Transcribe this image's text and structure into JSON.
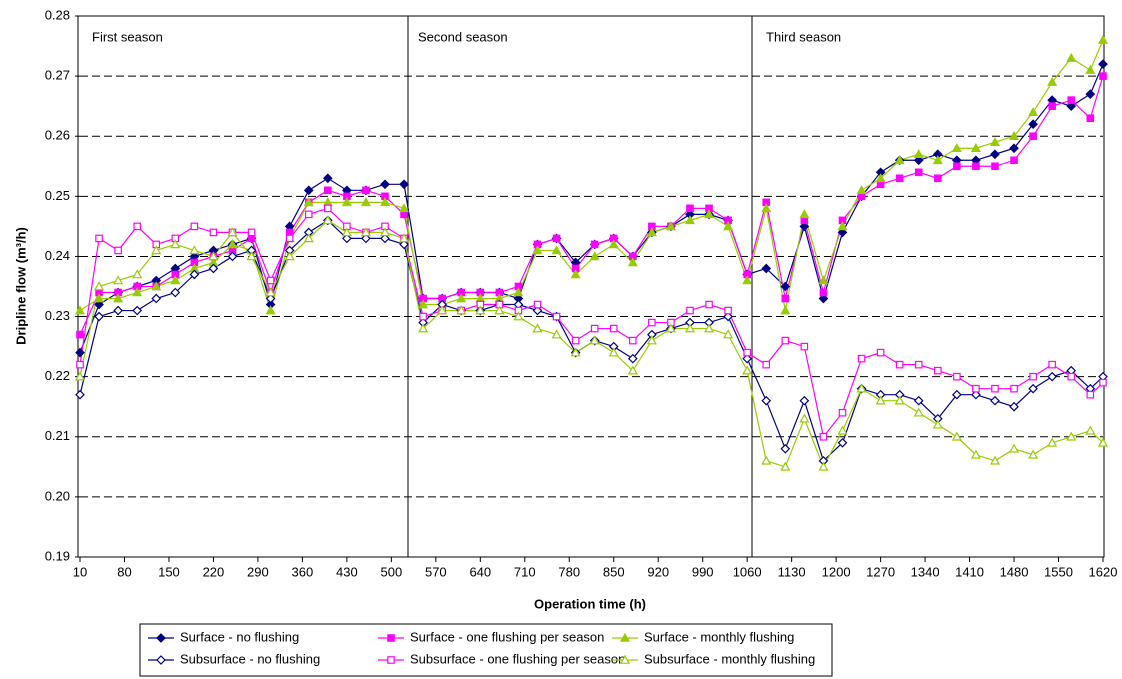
{
  "chart_data": {
    "type": "line",
    "xlabel": "Operation time (h)",
    "ylabel": "Dripline flow (m³/h)",
    "annotations": [
      "First season",
      "Second season",
      "Third season"
    ],
    "grid": true,
    "legend": "bottom",
    "xlim": [
      10,
      1620
    ],
    "xticks": [
      10,
      80,
      150,
      220,
      290,
      360,
      430,
      500,
      570,
      640,
      710,
      780,
      850,
      920,
      990,
      1060,
      1130,
      1200,
      1270,
      1340,
      1410,
      1480,
      1550,
      1620
    ],
    "ylim": [
      0.19,
      0.28
    ],
    "yticks": [
      0.19,
      {
        "value": 0.2,
        "label": "0.20"
      },
      0.21,
      0.22,
      0.23,
      0.24,
      0.25,
      0.26,
      0.27,
      0.28
    ],
    "x": [
      10,
      40,
      70,
      100,
      130,
      160,
      190,
      220,
      250,
      280,
      310,
      340,
      370,
      400,
      430,
      460,
      490,
      520,
      550,
      580,
      610,
      640,
      670,
      700,
      730,
      760,
      790,
      820,
      850,
      880,
      910,
      940,
      970,
      1000,
      1030,
      1060,
      1090,
      1120,
      1150,
      1180,
      1210,
      1240,
      1270,
      1300,
      1330,
      1360,
      1390,
      1420,
      1450,
      1480,
      1510,
      1540,
      1570,
      1600,
      1620
    ],
    "series": [
      {
        "name": "Surface - no flushing",
        "color": "#000080",
        "marker": "diamond",
        "filled": true,
        "values": [
          0.224,
          0.232,
          0.234,
          0.235,
          0.236,
          0.238,
          0.24,
          0.241,
          0.242,
          0.243,
          0.232,
          0.245,
          0.251,
          0.253,
          0.251,
          0.251,
          0.252,
          0.252,
          0.233,
          0.233,
          0.234,
          0.234,
          0.234,
          0.233,
          0.242,
          0.243,
          0.239,
          0.242,
          0.243,
          0.24,
          0.244,
          0.245,
          0.247,
          0.247,
          0.246,
          0.237,
          0.238,
          0.235,
          0.245,
          0.233,
          0.244,
          0.25,
          0.254,
          0.256,
          0.256,
          0.257,
          0.256,
          0.256,
          0.257,
          0.258,
          0.262,
          0.266,
          0.265,
          0.267,
          0.272
        ]
      },
      {
        "name": "Surface - one flushing per season",
        "color": "#ff00ff",
        "marker": "square",
        "filled": true,
        "values": [
          0.227,
          0.234,
          0.234,
          0.235,
          0.235,
          0.237,
          0.239,
          0.24,
          0.241,
          0.243,
          0.234,
          0.244,
          0.249,
          0.251,
          0.25,
          0.251,
          0.25,
          0.247,
          0.233,
          0.233,
          0.234,
          0.234,
          0.234,
          0.235,
          0.242,
          0.243,
          0.238,
          0.242,
          0.243,
          0.24,
          0.245,
          0.245,
          0.248,
          0.248,
          0.246,
          0.237,
          0.249,
          0.233,
          0.246,
          0.234,
          0.246,
          0.25,
          0.252,
          0.253,
          0.254,
          0.253,
          0.255,
          0.255,
          0.255,
          0.256,
          0.26,
          0.265,
          0.266,
          0.263,
          0.27
        ]
      },
      {
        "name": "Surface - monthly flushing",
        "color": "#99cc00",
        "marker": "triangle",
        "filled": true,
        "values": [
          0.231,
          0.233,
          0.233,
          0.234,
          0.235,
          0.236,
          0.238,
          0.239,
          0.242,
          0.241,
          0.231,
          0.243,
          0.249,
          0.249,
          0.249,
          0.249,
          0.249,
          0.248,
          0.232,
          0.232,
          0.233,
          0.233,
          0.233,
          0.234,
          0.241,
          0.241,
          0.237,
          0.24,
          0.242,
          0.239,
          0.244,
          0.245,
          0.246,
          0.247,
          0.245,
          0.236,
          0.248,
          0.231,
          0.247,
          0.236,
          0.245,
          0.251,
          0.253,
          0.256,
          0.257,
          0.256,
          0.258,
          0.258,
          0.259,
          0.26,
          0.264,
          0.269,
          0.273,
          0.271,
          0.276
        ]
      },
      {
        "name": "Subsurface - no flushing",
        "color": "#000080",
        "marker": "diamond",
        "filled": false,
        "values": [
          0.217,
          0.23,
          0.231,
          0.231,
          0.233,
          0.234,
          0.237,
          0.238,
          0.24,
          0.241,
          0.233,
          0.241,
          0.244,
          0.246,
          0.243,
          0.243,
          0.243,
          0.242,
          0.229,
          0.232,
          0.231,
          0.231,
          0.232,
          0.232,
          0.231,
          0.23,
          0.224,
          0.226,
          0.225,
          0.223,
          0.227,
          0.228,
          0.229,
          0.229,
          0.23,
          0.223,
          0.216,
          0.208,
          0.216,
          0.206,
          0.209,
          0.218,
          0.217,
          0.217,
          0.216,
          0.213,
          0.217,
          0.217,
          0.216,
          0.215,
          0.218,
          0.22,
          0.221,
          0.218,
          0.22
        ]
      },
      {
        "name": "Subsurface - one flushing per season",
        "color": "#ff00ff",
        "marker": "square",
        "filled": false,
        "values": [
          0.222,
          0.243,
          0.241,
          0.245,
          0.242,
          0.243,
          0.245,
          0.244,
          0.244,
          0.244,
          0.236,
          0.243,
          0.247,
          0.248,
          0.245,
          0.244,
          0.245,
          0.243,
          0.23,
          0.231,
          0.231,
          0.232,
          0.232,
          0.231,
          0.232,
          0.23,
          0.226,
          0.228,
          0.228,
          0.226,
          0.229,
          0.229,
          0.231,
          0.232,
          0.231,
          0.224,
          0.222,
          0.226,
          0.225,
          0.21,
          0.214,
          0.223,
          0.224,
          0.222,
          0.222,
          0.221,
          0.22,
          0.218,
          0.218,
          0.218,
          0.22,
          0.222,
          0.22,
          0.217,
          0.219
        ]
      },
      {
        "name": "Subsurface - monthly flushing",
        "color": "#99cc00",
        "marker": "triangle",
        "filled": false,
        "values": [
          0.22,
          0.235,
          0.236,
          0.237,
          0.241,
          0.242,
          0.241,
          0.24,
          0.244,
          0.24,
          0.234,
          0.24,
          0.243,
          0.246,
          0.244,
          0.244,
          0.244,
          0.243,
          0.228,
          0.231,
          0.231,
          0.231,
          0.231,
          0.23,
          0.228,
          0.227,
          0.224,
          0.226,
          0.224,
          0.221,
          0.226,
          0.228,
          0.228,
          0.228,
          0.227,
          0.221,
          0.206,
          0.205,
          0.213,
          0.205,
          0.211,
          0.218,
          0.216,
          0.216,
          0.214,
          0.212,
          0.21,
          0.207,
          0.206,
          0.208,
          0.207,
          0.209,
          0.21,
          0.211,
          0.209
        ]
      }
    ]
  }
}
